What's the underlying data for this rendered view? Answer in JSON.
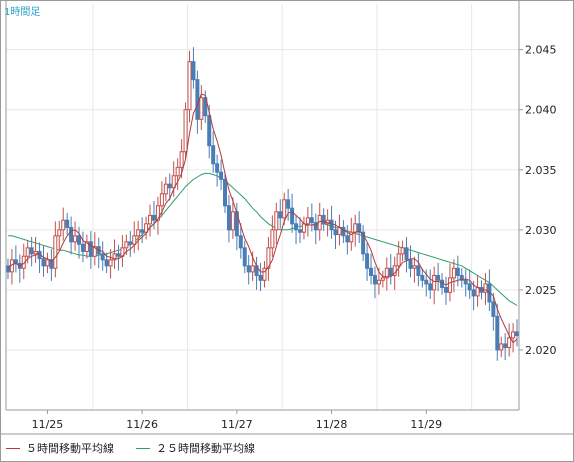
{
  "chart_data": {
    "type": "candlestick",
    "title": "1時間足",
    "y_ticks": [
      "2.045",
      "2.040",
      "2.035",
      "2.030",
      "2.025",
      "2.020"
    ],
    "x_ticks": [
      "11/25",
      "11/26",
      "11/27",
      "11/28",
      "11/29"
    ],
    "ylim": [
      2.015,
      2.0488
    ],
    "grid": true,
    "colors": {
      "up": "#c0504d",
      "down": "#4a7db5",
      "ma5": "#b03b3b",
      "ma25": "#2e9e6e",
      "grid": "#e8e8e8",
      "axis": "#9a9a9a"
    },
    "legend": [
      {
        "label": "５時間移動平均線",
        "color": "#b03b3b"
      },
      {
        "label": "２５時間移動平均線",
        "color": "#2e9e6e"
      }
    ],
    "close_series": [
      2.0265,
      2.0275,
      2.0272,
      2.0268,
      2.0278,
      2.0285,
      2.028,
      2.0282,
      2.0276,
      2.027,
      2.0275,
      2.0268,
      2.0295,
      2.03,
      2.0308,
      2.0302,
      2.029,
      2.0295,
      2.0288,
      2.0282,
      2.029,
      2.0278,
      2.0286,
      2.028,
      2.0275,
      2.027,
      2.0275,
      2.028,
      2.0278,
      2.0285,
      2.029,
      2.0288,
      2.0295,
      2.03,
      2.0298,
      2.0305,
      2.0312,
      2.0308,
      2.032,
      2.033,
      2.0338,
      2.0335,
      2.0345,
      2.0352,
      2.0365,
      2.04,
      2.044,
      2.0425,
      2.0392,
      2.041,
      2.0395,
      2.037,
      2.0355,
      2.0348,
      2.0342,
      2.032,
      2.03,
      2.0315,
      2.0295,
      2.0285,
      2.027,
      2.0265,
      2.027,
      2.0262,
      2.0258,
      2.0268,
      2.0285,
      2.03,
      2.0315,
      2.031,
      2.0325,
      2.0318,
      2.0305,
      2.03,
      2.0298,
      2.0305,
      2.031,
      2.0306,
      2.03,
      2.0312,
      2.0305,
      2.0308,
      2.03,
      2.0296,
      2.0302,
      2.0295,
      2.029,
      2.0298,
      2.0305,
      2.0298,
      2.028,
      2.0268,
      2.0262,
      2.0255,
      2.0258,
      2.026,
      2.0268,
      2.0262,
      2.027,
      2.028,
      2.0285,
      2.0275,
      2.0268,
      2.027,
      2.0262,
      2.0258,
      2.0255,
      2.025,
      2.0262,
      2.0258,
      2.0252,
      2.0248,
      2.026,
      2.0268,
      2.0262,
      2.0258,
      2.0255,
      2.025,
      2.0245,
      2.0252,
      2.0248,
      2.0255,
      2.024,
      2.0228,
      2.02,
      2.0205,
      2.0202,
      2.021,
      2.0215,
      2.0212
    ],
    "ma5": [
      2.0268,
      2.0271,
      2.0272,
      2.027,
      2.0272,
      2.0276,
      2.0278,
      2.0279,
      2.028,
      2.0277,
      2.0276,
      2.0274,
      2.0277,
      2.0282,
      2.0289,
      2.0295,
      2.0299,
      2.03,
      2.0297,
      2.0291,
      2.0289,
      2.0287,
      2.0285,
      2.0283,
      2.0282,
      2.0278,
      2.0277,
      2.0276,
      2.0276,
      2.0278,
      2.0282,
      2.0284,
      2.0287,
      2.0291,
      2.0294,
      2.0297,
      2.0302,
      2.0305,
      2.0309,
      2.0315,
      2.0322,
      2.0326,
      2.0334,
      2.034,
      2.0347,
      2.0359,
      2.038,
      2.0397,
      2.0404,
      2.0413,
      2.0412,
      2.0398,
      2.0384,
      2.0374,
      2.0362,
      2.0347,
      2.0333,
      2.0324,
      2.0314,
      2.0303,
      2.0293,
      2.0286,
      2.0277,
      2.027,
      2.0265,
      2.0265,
      2.0269,
      2.0275,
      2.0286,
      2.0296,
      2.0307,
      2.0314,
      2.0315,
      2.0312,
      2.0309,
      2.0305,
      2.0304,
      2.0304,
      2.0304,
      2.0307,
      2.0307,
      2.0306,
      2.0305,
      2.0304,
      2.0302,
      2.03,
      2.0298,
      2.0296,
      2.0298,
      2.0299,
      2.0296,
      2.029,
      2.0283,
      2.0273,
      2.0265,
      2.0261,
      2.0261,
      2.0261,
      2.0264,
      2.0268,
      2.0273,
      2.0274,
      2.0276,
      2.0276,
      2.0273,
      2.0267,
      2.0263,
      2.0259,
      2.0257,
      2.0257,
      2.0256,
      2.0254,
      2.0256,
      2.0257,
      2.0258,
      2.0259,
      2.0259,
      2.0258,
      2.0254,
      2.0252,
      2.025,
      2.025,
      2.0248,
      2.0245,
      2.0234,
      2.0226,
      2.0219,
      2.0212,
      2.0206,
      2.0209
    ],
    "ma25": [
      2.0295,
      2.0295,
      2.0294,
      2.0293,
      2.0292,
      2.0291,
      2.029,
      2.0289,
      2.0288,
      2.0287,
      2.0286,
      2.0285,
      2.0284,
      2.0283,
      2.0283,
      2.0282,
      2.0281,
      2.028,
      2.0279,
      2.0279,
      2.0278,
      2.0278,
      2.0278,
      2.0279,
      2.0279,
      2.028,
      2.0281,
      2.0282,
      2.0283,
      2.0284,
      2.0286,
      2.0288,
      2.029,
      2.0293,
      2.0296,
      2.0299,
      2.0302,
      2.0305,
      2.0308,
      2.0312,
      2.0316,
      2.032,
      2.0324,
      2.0328,
      2.0332,
      2.0336,
      2.0339,
      2.0342,
      2.0344,
      2.0346,
      2.0347,
      2.0347,
      2.0346,
      2.0345,
      2.0343,
      2.0341,
      2.0338,
      2.0335,
      2.0332,
      2.0329,
      2.0326,
      2.0322,
      2.0318,
      2.0315,
      2.0311,
      2.0308,
      2.0305,
      2.0303,
      2.0301,
      2.03,
      2.03,
      2.03,
      2.0301,
      2.0302,
      2.0303,
      2.0303,
      2.0304,
      2.0304,
      2.0305,
      2.0305,
      2.0305,
      2.0304,
      2.0303,
      2.0302,
      2.0301,
      2.03,
      2.0299,
      2.0298,
      2.0297,
      2.0296,
      2.0295,
      2.0294,
      2.0293,
      2.0292,
      2.0291,
      2.029,
      2.0289,
      2.0288,
      2.0287,
      2.0286,
      2.0285,
      2.0284,
      2.0283,
      2.0282,
      2.0281,
      2.028,
      2.0279,
      2.0278,
      2.0277,
      2.0276,
      2.0275,
      2.0274,
      2.0273,
      2.0272,
      2.0271,
      2.027,
      2.0268,
      2.0266,
      2.0264,
      2.0262,
      2.026,
      2.0258,
      2.0256,
      2.0253,
      2.025,
      2.0247,
      2.0244,
      2.0241,
      2.0239,
      2.0237
    ]
  }
}
